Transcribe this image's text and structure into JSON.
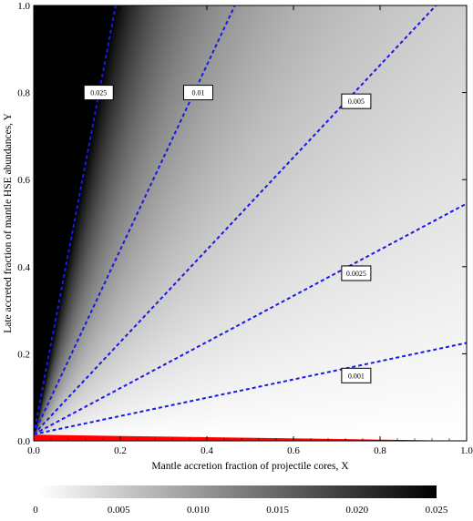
{
  "chart_data": {
    "type": "heatmap",
    "xlabel": "Mantle accretion fraction of projectile cores, X",
    "ylabel": "Late accreted fraction of mantle HSE abundances, Y",
    "xlim": [
      0,
      1
    ],
    "ylim": [
      0,
      1
    ],
    "x_ticks": [
      "0.0",
      "0.2",
      "0.4",
      "0.6",
      "0.8",
      "1.0"
    ],
    "y_ticks": [
      "0.0",
      "0.2",
      "0.4",
      "0.6",
      "0.8",
      "1.0"
    ],
    "colorbar": {
      "min": 0,
      "max": 0.025,
      "ticks": [
        {
          "value": 0,
          "label": "0"
        },
        {
          "value": 0.005,
          "label": "0.005"
        },
        {
          "value": 0.01,
          "label": "0.010"
        },
        {
          "value": 0.015,
          "label": "0.015"
        },
        {
          "value": 0.02,
          "label": "0.020"
        },
        {
          "value": 0.025,
          "label": "0.025"
        }
      ],
      "colormap": "white-to-black"
    },
    "contours": [
      {
        "label": "0.025",
        "value": 0.025,
        "slope": 5.2,
        "label_x": 0.15,
        "label_y": 0.8
      },
      {
        "label": "0.01",
        "value": 0.01,
        "slope": 2.12,
        "label_x": 0.38,
        "label_y": 0.8
      },
      {
        "label": "0.005",
        "value": 0.005,
        "slope": 1.06,
        "label_x": 0.745,
        "label_y": 0.78
      },
      {
        "label": "0.0025",
        "value": 0.0025,
        "slope": 0.53,
        "label_x": 0.745,
        "label_y": 0.385
      },
      {
        "label": "0.001",
        "value": 0.001,
        "slope": 0.21,
        "label_x": 0.745,
        "label_y": 0.15
      }
    ],
    "excluded_region": {
      "color": "#ff0000",
      "y_at_x0": 0.014,
      "y_at_x1": 0.0
    }
  },
  "colors": {
    "contour": "#1a1ae6",
    "excluded": "#ff0000"
  }
}
